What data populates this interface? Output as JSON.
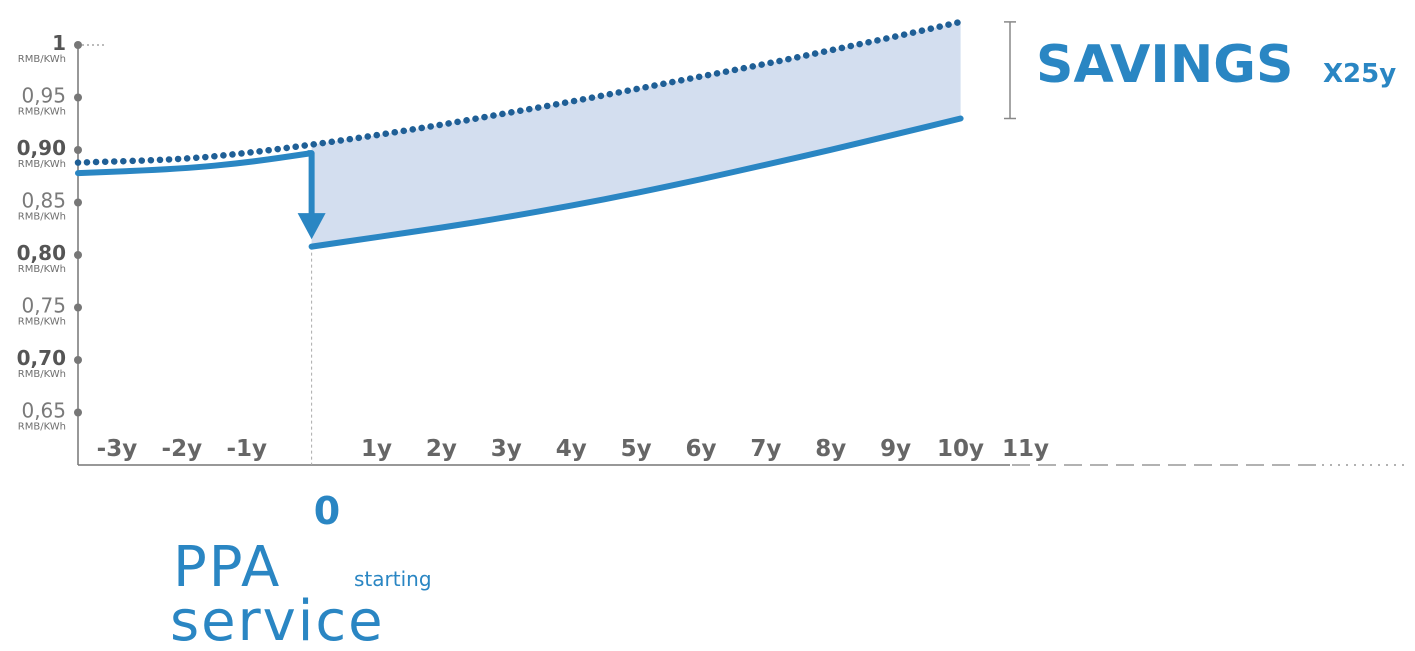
{
  "chart_data": {
    "type": "line",
    "title": "",
    "y_unit": "RMB/KWh",
    "y_ticks": [
      {
        "value": 1.0,
        "label": "1",
        "bold": true
      },
      {
        "value": 0.95,
        "label": "0,95",
        "bold": false
      },
      {
        "value": 0.9,
        "label": "0,90",
        "bold": true
      },
      {
        "value": 0.85,
        "label": "0,85",
        "bold": false
      },
      {
        "value": 0.8,
        "label": "0,80",
        "bold": true
      },
      {
        "value": 0.75,
        "label": "0,75",
        "bold": false
      },
      {
        "value": 0.7,
        "label": "0,70",
        "bold": true
      },
      {
        "value": 0.65,
        "label": "0,65",
        "bold": false
      }
    ],
    "ylim": [
      0.6,
      1.0
    ],
    "x_ticks": [
      {
        "value": -3,
        "label": "-3y"
      },
      {
        "value": -2,
        "label": "-2y"
      },
      {
        "value": -1,
        "label": "-1y"
      },
      {
        "value": 1,
        "label": "1y"
      },
      {
        "value": 2,
        "label": "2y"
      },
      {
        "value": 3,
        "label": "3y"
      },
      {
        "value": 4,
        "label": "4y"
      },
      {
        "value": 5,
        "label": "5y"
      },
      {
        "value": 6,
        "label": "6y"
      },
      {
        "value": 7,
        "label": "7y"
      },
      {
        "value": 8,
        "label": "8y"
      },
      {
        "value": 9,
        "label": "9y"
      },
      {
        "value": 10,
        "label": "10y"
      },
      {
        "value": 11,
        "label": "11y"
      }
    ],
    "xlim": [
      -3.6,
      10.5
    ],
    "series": [
      {
        "style": "dotted",
        "color": "#1f5f96",
        "x": [
          -3.6,
          -2,
          -1,
          0,
          1,
          2,
          3,
          4,
          5,
          6,
          7,
          8,
          9,
          10
        ],
        "y": [
          0.888,
          0.891,
          0.897,
          0.905,
          0.914,
          0.924,
          0.935,
          0.946,
          0.958,
          0.97,
          0.982,
          0.995,
          1.008,
          1.022
        ]
      },
      {
        "style": "solid",
        "color": "#2a86c3",
        "x": [
          -3.6,
          -2,
          -1,
          0
        ],
        "y": [
          0.878,
          0.882,
          0.888,
          0.897
        ]
      },
      {
        "style": "solid",
        "color": "#2a86c3",
        "x": [
          0,
          1,
          2,
          3,
          4,
          5,
          6,
          7,
          8,
          9,
          10
        ],
        "y": [
          0.808,
          0.817,
          0.826,
          0.836,
          0.847,
          0.859,
          0.872,
          0.886,
          0.9,
          0.915,
          0.93
        ]
      }
    ],
    "shaded_area_color": "#d3deef",
    "annotations": {
      "zero_label": "0",
      "ppa": "PPA",
      "starting": "starting",
      "service": "service",
      "savings": "SAVINGS",
      "savings_suffix": "X25y"
    }
  }
}
